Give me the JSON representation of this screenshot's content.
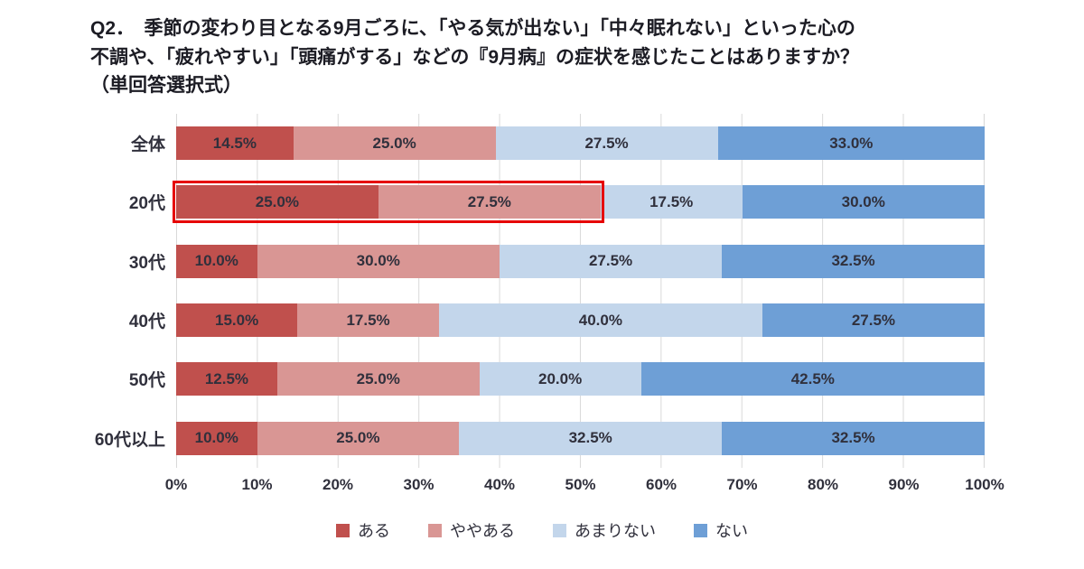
{
  "title": {
    "lines": [
      "Q2．　季節の変わり目となる9月ごろに、「やる気が出ない」「中々眠れない」といった心の",
      "不調や、「疲れやすい」「頭痛がする」などの『9月病』の症状を感じたことはありますか？",
      "（単回答選択式）"
    ]
  },
  "chart_data": {
    "type": "bar",
    "orientation": "horizontal",
    "stacked": true,
    "grid": true,
    "legend_position": "bottom",
    "categories": [
      "全体",
      "20代",
      "30代",
      "40代",
      "50代",
      "60代以上"
    ],
    "series": [
      {
        "name": "ある",
        "color": "#c0504d",
        "values": [
          14.5,
          25.0,
          10.0,
          15.0,
          12.5,
          10.0
        ]
      },
      {
        "name": "ややある",
        "color": "#d99694",
        "values": [
          25.0,
          27.5,
          30.0,
          17.5,
          25.0,
          25.0
        ]
      },
      {
        "name": "あまりない",
        "color": "#c3d6eb",
        "values": [
          27.5,
          17.5,
          27.5,
          40.0,
          20.0,
          32.5
        ]
      },
      {
        "name": "ない",
        "color": "#6e9fd6",
        "values": [
          33.0,
          30.0,
          32.5,
          27.5,
          42.5,
          32.5
        ]
      }
    ],
    "x_ticks": [
      "0%",
      "10%",
      "20%",
      "30%",
      "40%",
      "50%",
      "60%",
      "70%",
      "80%",
      "90%",
      "100%"
    ],
    "xlim": [
      0,
      100
    ],
    "value_suffix": "%",
    "highlight": {
      "category": "20代",
      "series_indices": [
        0,
        1
      ],
      "border_color": "#e60000"
    }
  }
}
